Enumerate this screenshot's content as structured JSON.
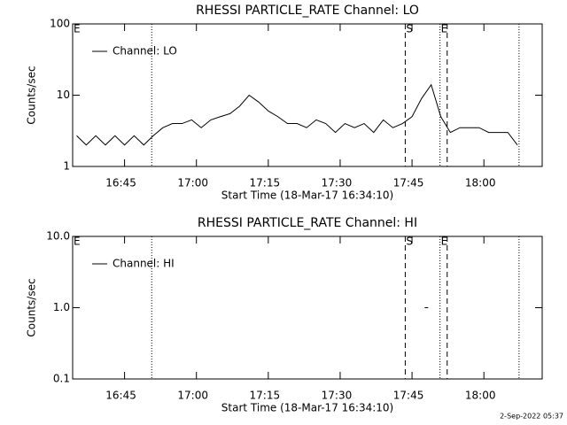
{
  "chart_data": [
    {
      "type": "line",
      "title": "RHESSI PARTICLE_RATE Channel: LO",
      "x_label": "Start Time (18-Mar-17 16:34:10)",
      "y_label": "Counts/sec",
      "log_y": true,
      "xlim": [
        "16:34:10",
        "18:12:10"
      ],
      "xticks": [
        "16:45",
        "17:00",
        "17:15",
        "17:30",
        "17:45",
        "18:00"
      ],
      "ylim": [
        1,
        100
      ],
      "yticks": [
        1,
        10,
        100
      ],
      "series": [
        {
          "name": "Channel: LO",
          "color": "#000000",
          "x": [
            "16:35",
            "16:37",
            "16:39",
            "16:41",
            "16:43",
            "16:45",
            "16:47",
            "16:49",
            "16:51",
            "16:53",
            "16:55",
            "16:57",
            "16:59",
            "17:01",
            "17:03",
            "17:05",
            "17:07",
            "17:09",
            "17:11",
            "17:13",
            "17:15",
            "17:17",
            "17:19",
            "17:21",
            "17:23",
            "17:25",
            "17:27",
            "17:29",
            "17:31",
            "17:33",
            "17:35",
            "17:37",
            "17:39",
            "17:41",
            "17:43",
            "17:45",
            "17:47",
            "17:49",
            "17:51",
            "17:53",
            "17:55",
            "17:57",
            "17:59",
            "18:01",
            "18:03",
            "18:05",
            "18:07"
          ],
          "values": [
            2.7,
            2,
            2.7,
            2,
            2.7,
            2,
            2.7,
            2,
            2.7,
            3.5,
            4,
            4,
            4.5,
            3.5,
            4.5,
            5,
            5.5,
            7,
            10,
            8,
            6,
            5,
            4,
            4,
            3.5,
            4.5,
            4,
            3,
            4,
            3.5,
            4,
            3,
            4.5,
            3.5,
            4,
            5,
            9,
            14,
            5,
            3,
            3.5,
            3.5,
            3.5,
            3,
            3,
            3,
            2
          ]
        }
      ],
      "vlines": [
        {
          "x": "16:50:40",
          "style": "dotted"
        },
        {
          "x": "17:43:35",
          "style": "dashed"
        },
        {
          "x": "17:50:50",
          "style": "dotted"
        },
        {
          "x": "17:52:20",
          "style": "dashed"
        },
        {
          "x": "18:07:20",
          "style": "dotted"
        }
      ],
      "flags": [
        {
          "x": "16:34:10",
          "label": "E"
        },
        {
          "x": "17:43:35",
          "label": "S"
        },
        {
          "x": "17:50:50",
          "label": "E"
        }
      ]
    },
    {
      "type": "line",
      "title": "RHESSI PARTICLE_RATE Channel: HI",
      "x_label": "Start Time (18-Mar-17 16:34:10)",
      "y_label": "Counts/sec",
      "log_y": true,
      "xlim": [
        "16:34:10",
        "18:12:10"
      ],
      "xticks": [
        "16:45",
        "17:00",
        "17:15",
        "17:30",
        "17:45",
        "18:00"
      ],
      "ylim": [
        0.1,
        10
      ],
      "yticks": [
        0.1,
        {
          "value": 1,
          "label": "1.0"
        },
        {
          "value": 10,
          "label": "10.0"
        }
      ],
      "series": [
        {
          "name": "Channel: HI",
          "color": "#000000",
          "x": [
            "17:48"
          ],
          "values": [
            1
          ]
        }
      ],
      "vlines": [
        {
          "x": "16:50:40",
          "style": "dotted"
        },
        {
          "x": "17:43:35",
          "style": "dashed"
        },
        {
          "x": "17:50:50",
          "style": "dotted"
        },
        {
          "x": "17:52:20",
          "style": "dashed"
        },
        {
          "x": "18:07:20",
          "style": "dotted"
        }
      ],
      "flags": [
        {
          "x": "16:34:10",
          "label": "E"
        },
        {
          "x": "17:43:35",
          "label": "S"
        },
        {
          "x": "17:50:50",
          "label": "E"
        }
      ]
    }
  ],
  "footer": "2-Sep-2022 05:37"
}
